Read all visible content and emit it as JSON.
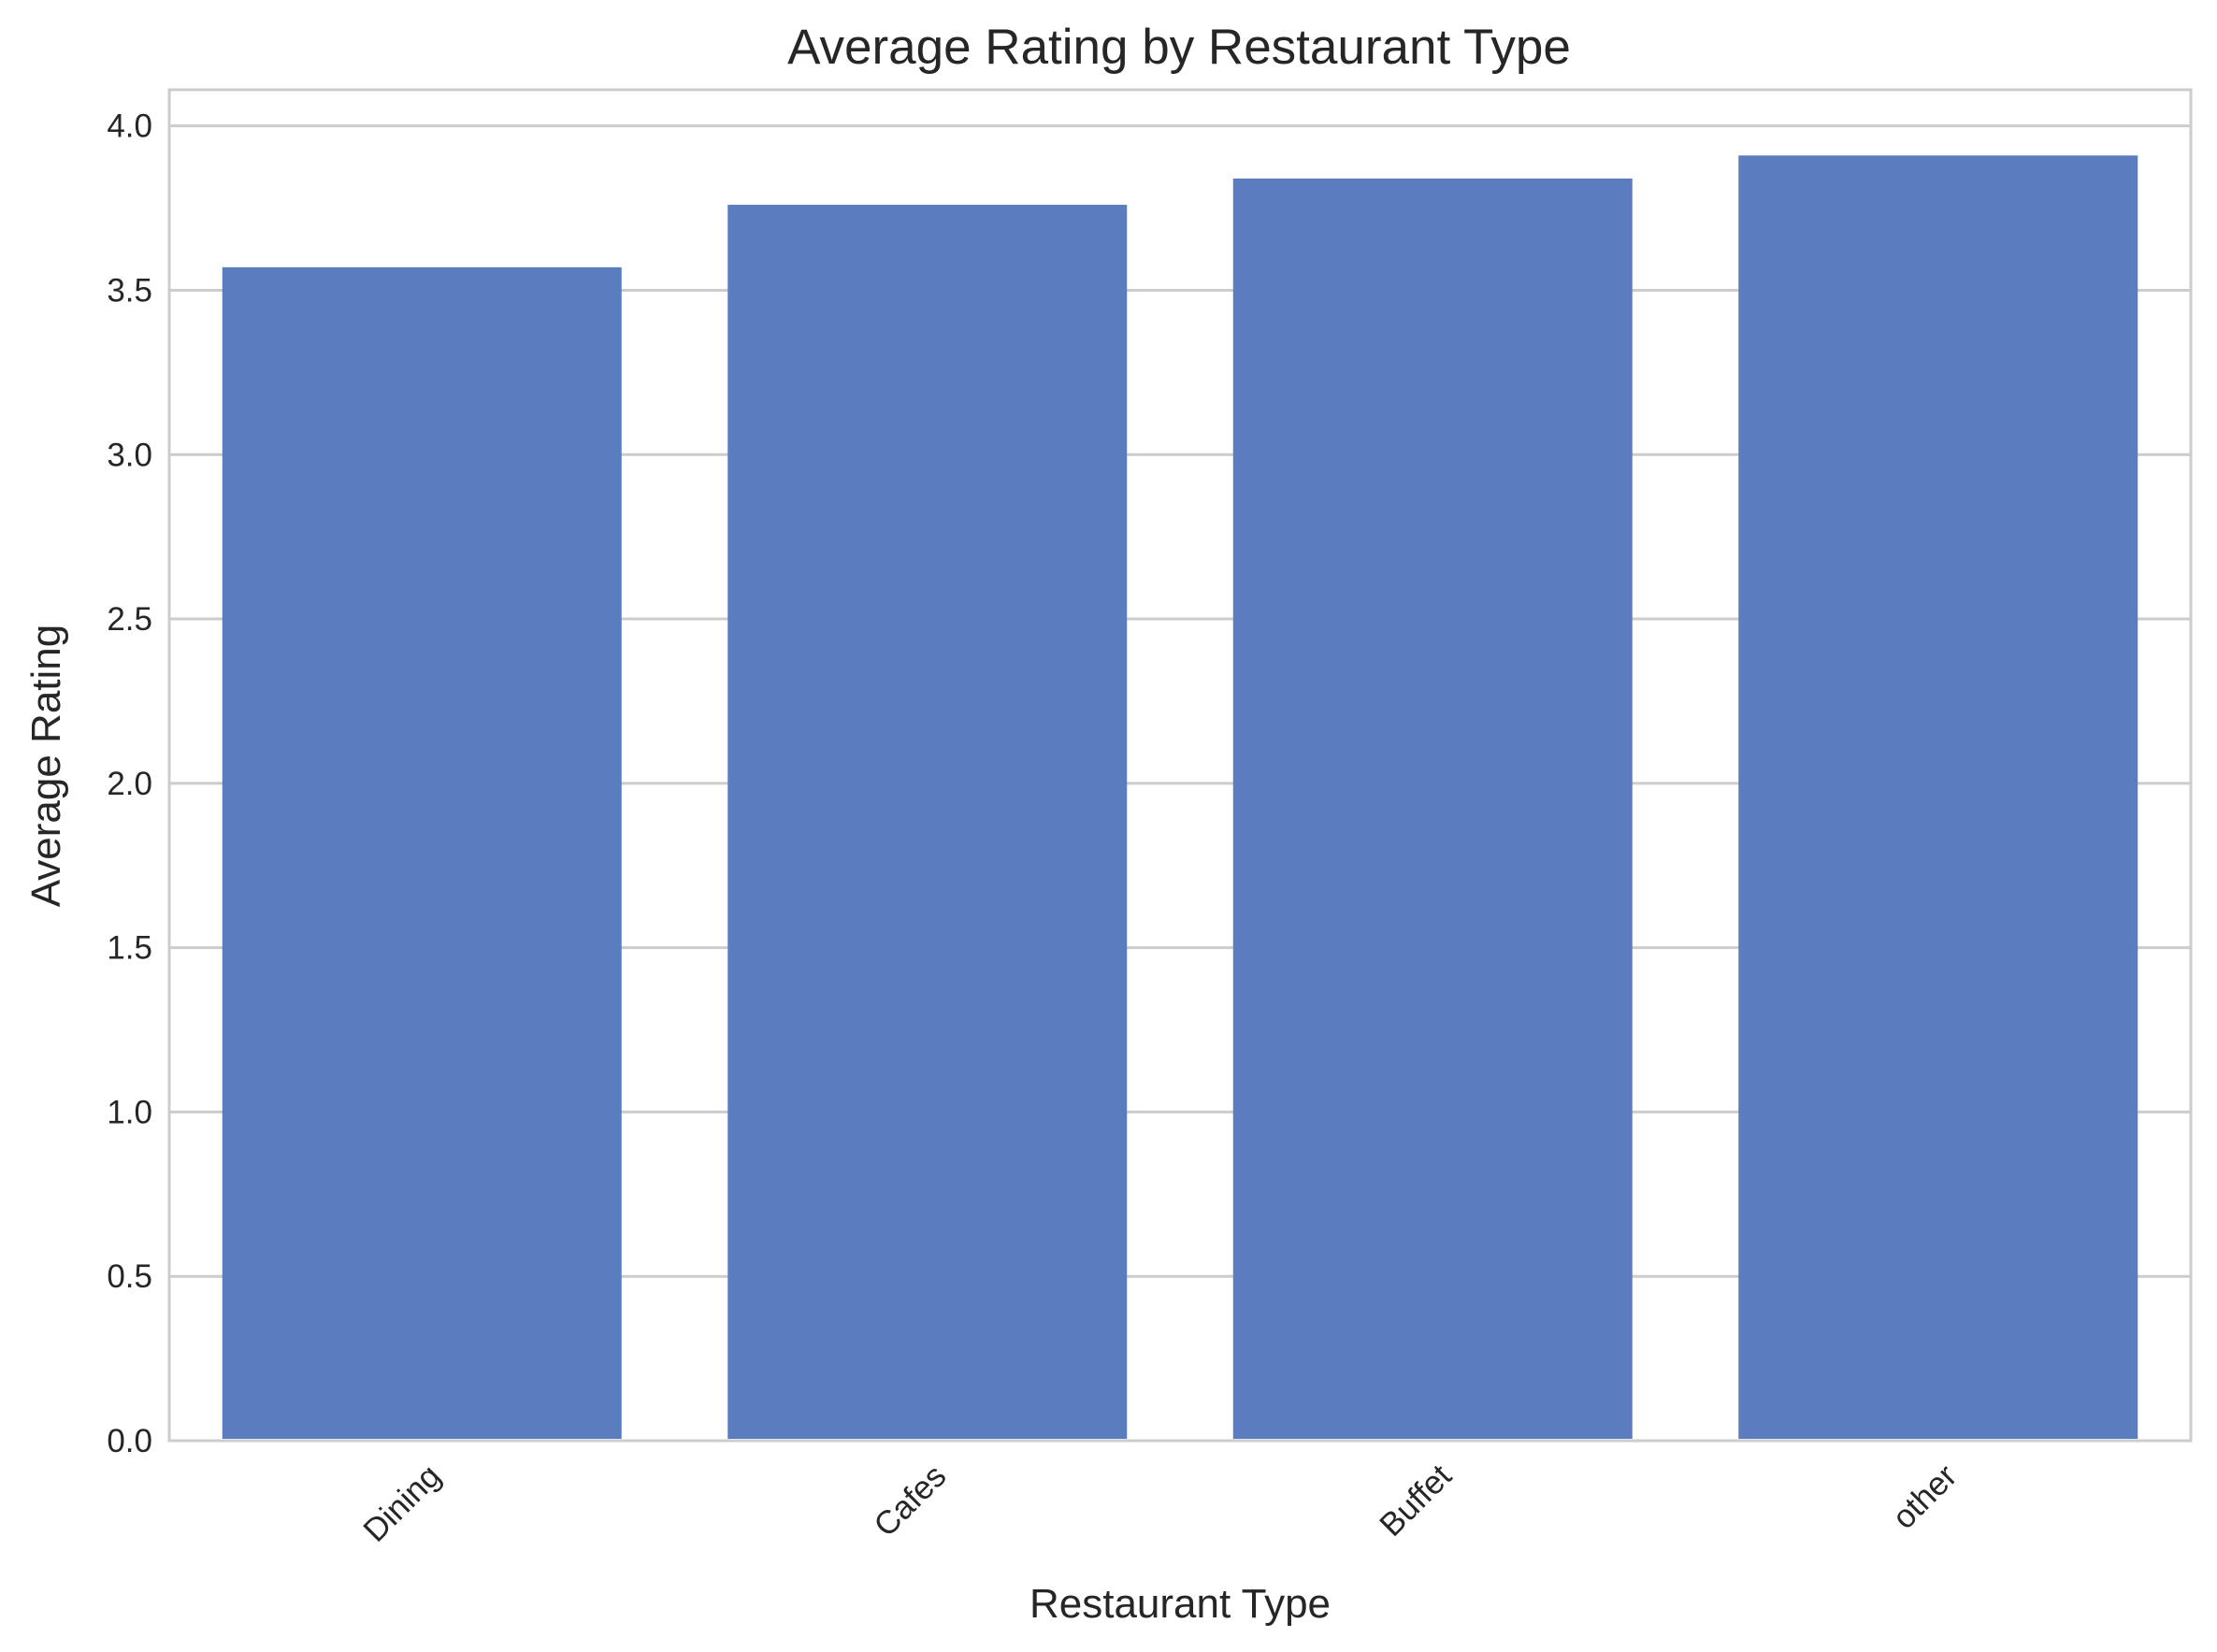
{
  "chart_data": {
    "type": "bar",
    "title": "Average Rating by Restaurant Type",
    "xlabel": "Restaurant Type",
    "ylabel": "Average Rating",
    "categories": [
      "Dining",
      "Cafes",
      "Buffet",
      "other"
    ],
    "values": [
      3.57,
      3.76,
      3.84,
      3.91
    ],
    "ylim": [
      0,
      4.11
    ],
    "yticks": [
      "0.0",
      "0.5",
      "1.0",
      "1.5",
      "2.0",
      "2.5",
      "3.0",
      "3.5",
      "4.0"
    ],
    "grid": "horizontal",
    "bar_color": "#5b7dbf",
    "grid_color": "#cccccc"
  }
}
